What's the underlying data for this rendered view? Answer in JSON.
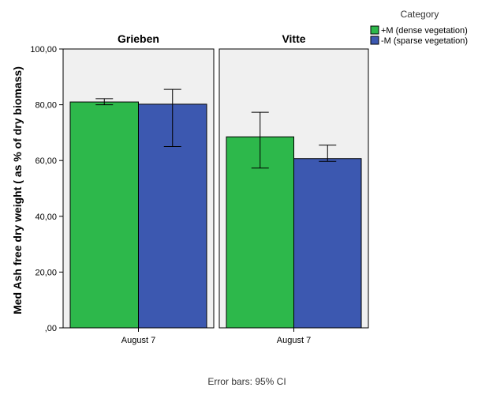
{
  "chart_data": {
    "type": "bar",
    "ylabel": "Med Ash free dry weight ( as % of dry biomass)",
    "yticks": [
      ",00",
      "20,00",
      "40,00",
      "60,00",
      "80,00",
      "100,00"
    ],
    "ylim": [
      0,
      100
    ],
    "legend": {
      "title": "Category",
      "placement": "top-right",
      "entries": [
        "+M (dense vegetation)",
        "-M (sparse vegetation)"
      ]
    },
    "colors": [
      "#2db84b",
      "#3c58b0"
    ],
    "panel_background": "#f0f0f0",
    "footnote": "Error bars: 95% CI",
    "panels": [
      {
        "title": "Grieben",
        "category": "August 7",
        "series": [
          {
            "name": "+M (dense vegetation)",
            "value": 81.0,
            "ci_low": 80.0,
            "ci_high": 82.2
          },
          {
            "name": "-M (sparse vegetation)",
            "value": 80.2,
            "ci_low": 65.0,
            "ci_high": 85.5
          }
        ]
      },
      {
        "title": "Vitte",
        "category": "August 7",
        "series": [
          {
            "name": "+M (dense vegetation)",
            "value": 68.5,
            "ci_low": 57.3,
            "ci_high": 77.3
          },
          {
            "name": "-M (sparse vegetation)",
            "value": 60.7,
            "ci_low": 59.7,
            "ci_high": 65.5
          }
        ]
      }
    ]
  }
}
